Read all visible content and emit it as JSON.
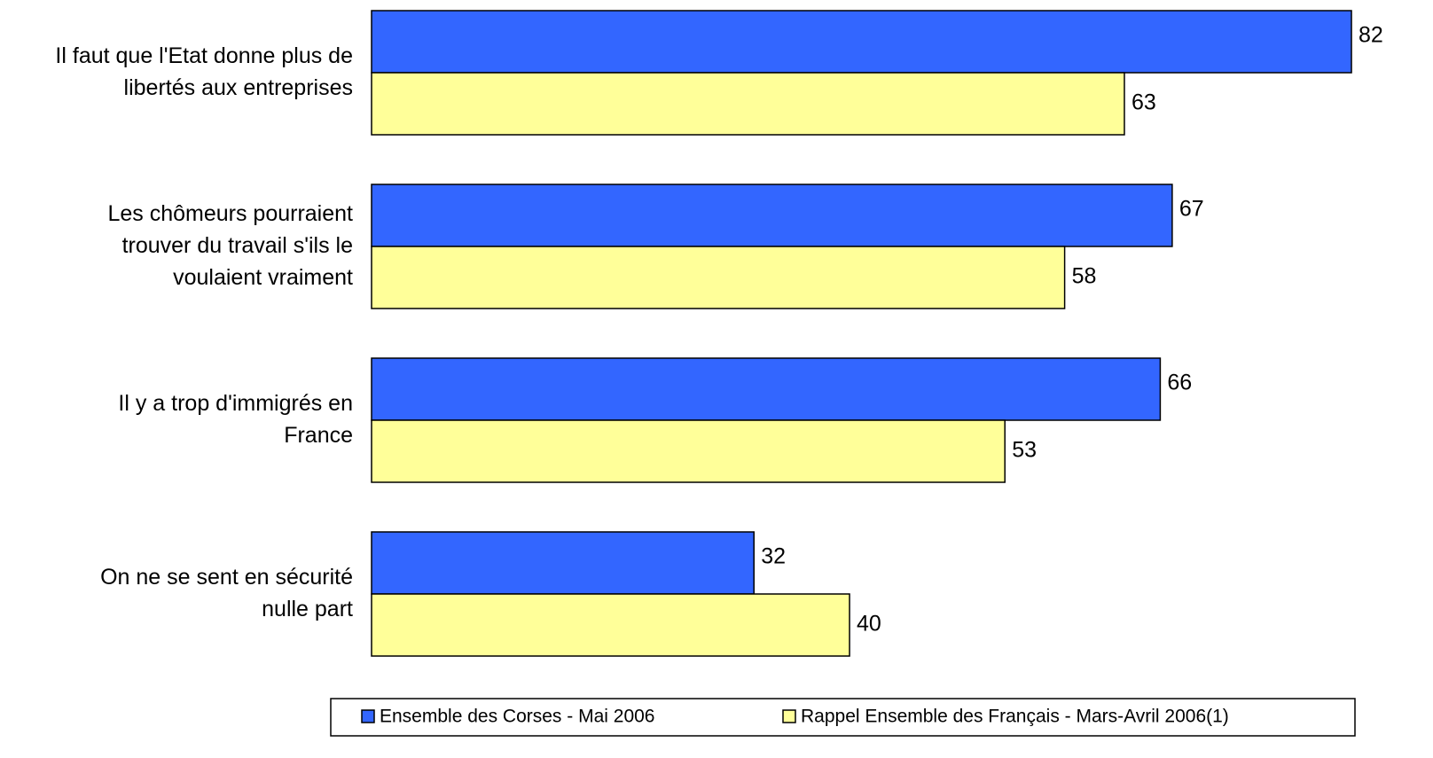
{
  "chart_data": {
    "type": "bar",
    "orientation": "horizontal",
    "categories": [
      "Il faut que l'Etat donne plus de\nlibertés aux entreprises",
      "Les chômeurs pourraient\ntrouver du travail s'ils le\nvoulaient vraiment",
      "Il y a trop d'immigrés en\nFrance",
      "On ne se sent en sécurité\nnulle part"
    ],
    "series": [
      {
        "name": "Ensemble des Corses - Mai 2006",
        "color": "#3366ff",
        "values": [
          82,
          67,
          66,
          32
        ]
      },
      {
        "name": "Rappel Ensemble des Français - Mars-Avril 2006(1)",
        "color": "#ffff99",
        "values": [
          63,
          58,
          53,
          40
        ]
      }
    ],
    "xlim": [
      0,
      85
    ],
    "legend": "bottom"
  }
}
